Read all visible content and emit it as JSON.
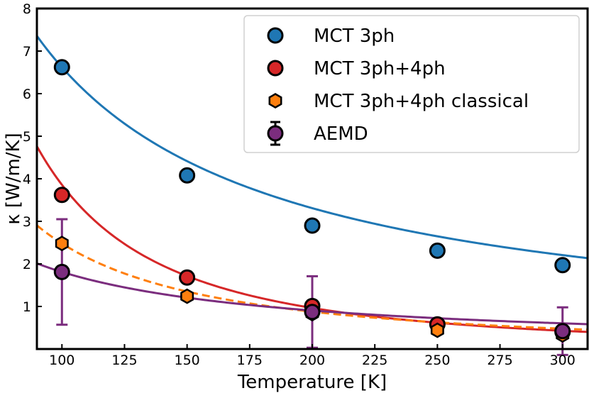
{
  "chart_data": {
    "type": "scatter",
    "xlabel": "Temperature [K]",
    "ylabel": "κ [W/m/K]",
    "xlim": [
      90,
      310
    ],
    "ylim": [
      0,
      8
    ],
    "xticks": [
      100,
      125,
      150,
      175,
      200,
      225,
      250,
      275,
      300
    ],
    "yticks": [
      1,
      2,
      3,
      4,
      5,
      6,
      7,
      8
    ],
    "series": [
      {
        "name": "MCT 3ph",
        "color": "#1f77b4",
        "marker": "circle",
        "x": [
          100,
          150,
          200,
          250,
          300
        ],
        "y": [
          6.62,
          4.08,
          2.9,
          2.31,
          1.97
        ],
        "fit": {
          "style": "solid",
          "A": 662,
          "n": 1
        }
      },
      {
        "name": "MCT 3ph+4ph",
        "color": "#d62728",
        "marker": "circle",
        "x": [
          100,
          150,
          200,
          250,
          300
        ],
        "y": [
          3.62,
          1.68,
          1.01,
          0.58,
          0.4
        ],
        "fit": {
          "style": "solid",
          "A": 38580,
          "n": 2
        }
      },
      {
        "name": "MCT 3ph+4ph classical",
        "color": "#ff7f0e",
        "marker": "hexagon",
        "x": [
          100,
          150,
          200,
          250,
          300
        ],
        "y": [
          2.48,
          1.24,
          0.83,
          0.44,
          0.33
        ],
        "fit": {
          "style": "dashed",
          "A": 2480,
          "n": 1.5
        }
      },
      {
        "name": "AEMD",
        "color": "#7b2d7e",
        "marker": "circle",
        "x": [
          100,
          200,
          300
        ],
        "y": [
          1.81,
          0.87,
          0.42
        ],
        "yerr": [
          1.24,
          0.84,
          0.56
        ],
        "fit": {
          "style": "solid",
          "A": 181,
          "n": 1
        }
      }
    ],
    "legend_position": "top-right"
  }
}
